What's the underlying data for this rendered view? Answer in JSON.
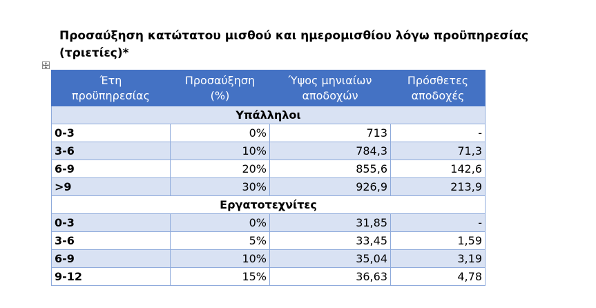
{
  "title": "Προσαύξηση κατώτατου μισθού και ημερομισθίου λόγω προϋπηρεσίας (τριετίες)*",
  "table": {
    "headers": [
      [
        "Έτη",
        "προϋπηρεσίας"
      ],
      [
        "Προσαύξηση",
        "(%)"
      ],
      [
        "Ύψος μηνιαίων",
        "αποδοχών"
      ],
      [
        "Πρόσθετες",
        "αποδοχές"
      ]
    ],
    "sections": [
      {
        "name": "Υπάλληλοι",
        "rows": [
          [
            "0-3",
            "0%",
            "713",
            "-"
          ],
          [
            "3-6",
            "10%",
            "784,3",
            "71,3"
          ],
          [
            "6-9",
            "20%",
            "855,6",
            "142,6"
          ],
          [
            ">9",
            "30%",
            "926,9",
            "213,9"
          ]
        ]
      },
      {
        "name": "Εργατοτεχνίτες",
        "rows": [
          [
            "0-3",
            "0%",
            "31,85",
            "-"
          ],
          [
            "3-6",
            "5%",
            "33,45",
            "1,59"
          ],
          [
            "6-9",
            "10%",
            "35,04",
            "3,19"
          ],
          [
            "9-12",
            "15%",
            "36,63",
            "4,78"
          ]
        ]
      }
    ]
  },
  "colors": {
    "header_bg": "#4472c4",
    "band_bg": "#d9e2f3",
    "border": "#8eaadb"
  },
  "icons": {
    "table_handle": "move-cross-icon"
  }
}
